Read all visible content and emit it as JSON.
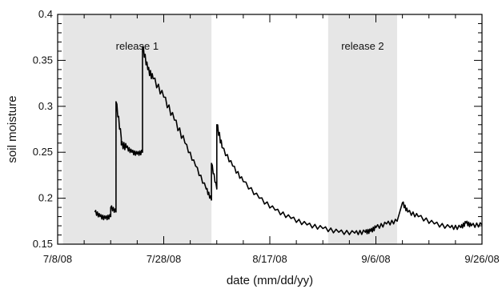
{
  "chart_data": {
    "type": "line",
    "xlabel": "date (mm/dd/yy)",
    "ylabel": "soil moisture",
    "xlim": [
      "2008-07-08",
      "2008-09-26"
    ],
    "ylim": [
      0.15,
      0.4
    ],
    "x_ticks": [
      {
        "date": "2008-07-08",
        "label": "7/8/08"
      },
      {
        "date": "2008-07-28",
        "label": "7/28/08"
      },
      {
        "date": "2008-08-17",
        "label": "8/17/08"
      },
      {
        "date": "2008-09-06",
        "label": "9/6/08"
      },
      {
        "date": "2008-09-26",
        "label": "9/26/08"
      }
    ],
    "y_ticks": [
      {
        "value": 0.15,
        "label": "0.15"
      },
      {
        "value": 0.2,
        "label": "0.2"
      },
      {
        "value": 0.25,
        "label": "0.25"
      },
      {
        "value": 0.3,
        "label": "0.3"
      },
      {
        "value": 0.35,
        "label": "0.35"
      },
      {
        "value": 0.4,
        "label": "0.4"
      }
    ],
    "shaded_regions": [
      {
        "label": "release 1",
        "start": "2008-07-09",
        "end": "2008-08-06",
        "color": "#e6e6e6"
      },
      {
        "label": "release 2",
        "start": "2008-08-28",
        "end": "2008-09-10",
        "color": "#e6e6e6"
      }
    ],
    "series": [
      {
        "color": "#000000",
        "x": [
          "2008-07-15",
          "2008-07-16",
          "2008-07-17",
          "2008-07-18",
          "2008-07-18",
          "2008-07-19",
          "2008-07-19",
          "2008-07-20",
          "2008-07-20",
          "2008-07-21",
          "2008-07-22",
          "2008-07-23",
          "2008-07-24",
          "2008-07-24",
          "2008-07-25",
          "2008-07-26",
          "2008-07-28",
          "2008-07-30",
          "2008-08-01",
          "2008-08-03",
          "2008-08-05",
          "2008-08-06",
          "2008-08-06",
          "2008-08-07",
          "2008-08-07",
          "2008-08-08",
          "2008-08-10",
          "2008-08-12",
          "2008-08-15",
          "2008-08-18",
          "2008-08-21",
          "2008-08-24",
          "2008-08-27",
          "2008-08-30",
          "2008-09-02",
          "2008-09-04",
          "2008-09-05",
          "2008-09-06",
          "2008-09-08",
          "2008-09-10",
          "2008-09-11",
          "2008-09-12",
          "2008-09-14",
          "2008-09-17",
          "2008-09-20",
          "2008-09-22",
          "2008-09-23",
          "2008-09-24",
          "2008-09-26"
        ],
        "y": [
          0.185,
          0.18,
          0.178,
          0.18,
          0.19,
          0.185,
          0.305,
          0.265,
          0.258,
          0.255,
          0.25,
          0.248,
          0.25,
          0.365,
          0.34,
          0.33,
          0.31,
          0.285,
          0.26,
          0.235,
          0.21,
          0.198,
          0.238,
          0.21,
          0.28,
          0.255,
          0.235,
          0.218,
          0.2,
          0.187,
          0.178,
          0.171,
          0.167,
          0.163,
          0.162,
          0.163,
          0.164,
          0.168,
          0.172,
          0.175,
          0.195,
          0.185,
          0.18,
          0.172,
          0.168,
          0.168,
          0.173,
          0.17,
          0.171
        ]
      }
    ]
  }
}
